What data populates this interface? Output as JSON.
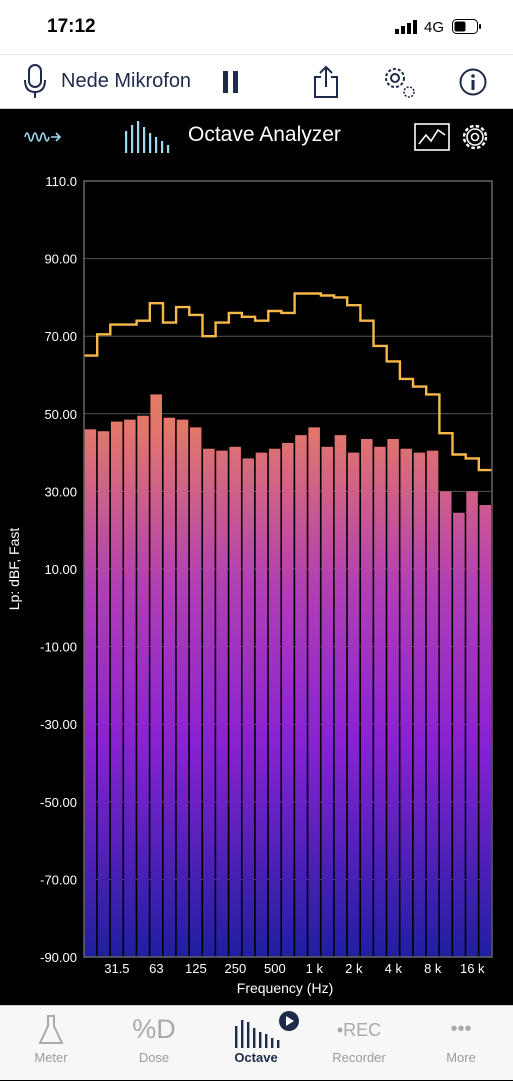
{
  "status": {
    "time": "17:12",
    "network": "4G"
  },
  "header": {
    "title": "Nede Mikrofon"
  },
  "toolbar": {
    "title": "Octave Analyzer"
  },
  "tabs": [
    {
      "label": "Meter",
      "glyph": ""
    },
    {
      "label": "Dose",
      "glyph": "%D"
    },
    {
      "label": "Octave",
      "glyph": ""
    },
    {
      "label": "Recorder",
      "glyph": "•REC"
    },
    {
      "label": "More",
      "glyph": "•••"
    }
  ],
  "chart_data": {
    "type": "bar",
    "ylabel": "Lp: dBF, Fast",
    "xlabel": "Frequency (Hz)",
    "ylim": [
      -90,
      110
    ],
    "y_ticks": [
      "110.0",
      "90.00",
      "70.00",
      "50.00",
      "30.00",
      "10.00",
      "-10.00",
      "-30.00",
      "-50.00",
      "-70.00",
      "-90.00"
    ],
    "x_tick_labels": [
      "31.5",
      "63",
      "125",
      "250",
      "500",
      "1 k",
      "2 k",
      "4 k",
      "8 k",
      "16 k"
    ],
    "x_tick_band_index": [
      2,
      5,
      8,
      11,
      14,
      17,
      20,
      23,
      26,
      29
    ],
    "bands": 31,
    "series": [
      {
        "name": "",
        "kind": "bars",
        "values": [
          46,
          45.5,
          48,
          48.5,
          49.5,
          55,
          49,
          48.5,
          46.5,
          41,
          40.5,
          41.5,
          38.5,
          40,
          41,
          42.5,
          44.5,
          46.5,
          41.5,
          44.5,
          40,
          43.5,
          41.5,
          43.5,
          41,
          40,
          40.5,
          30,
          24.5,
          30,
          26.5
        ]
      },
      {
        "name": "",
        "kind": "step",
        "color": "#f7b84a",
        "values": [
          65,
          70.5,
          73,
          73,
          74,
          78.5,
          73.5,
          77.5,
          75.5,
          70,
          73.5,
          76,
          75,
          74,
          76.5,
          76,
          81,
          81,
          80.5,
          80,
          78,
          74,
          67.5,
          63.5,
          59,
          57,
          55,
          45,
          39.5,
          38.5,
          35.5
        ]
      }
    ],
    "grid": true,
    "colors": {
      "bar_top": "#e6875a",
      "bar_mid": "#a030c8",
      "bar_bottom": "#1f20a0",
      "peak_line": "#f7b84a",
      "grid": "#555555"
    }
  }
}
